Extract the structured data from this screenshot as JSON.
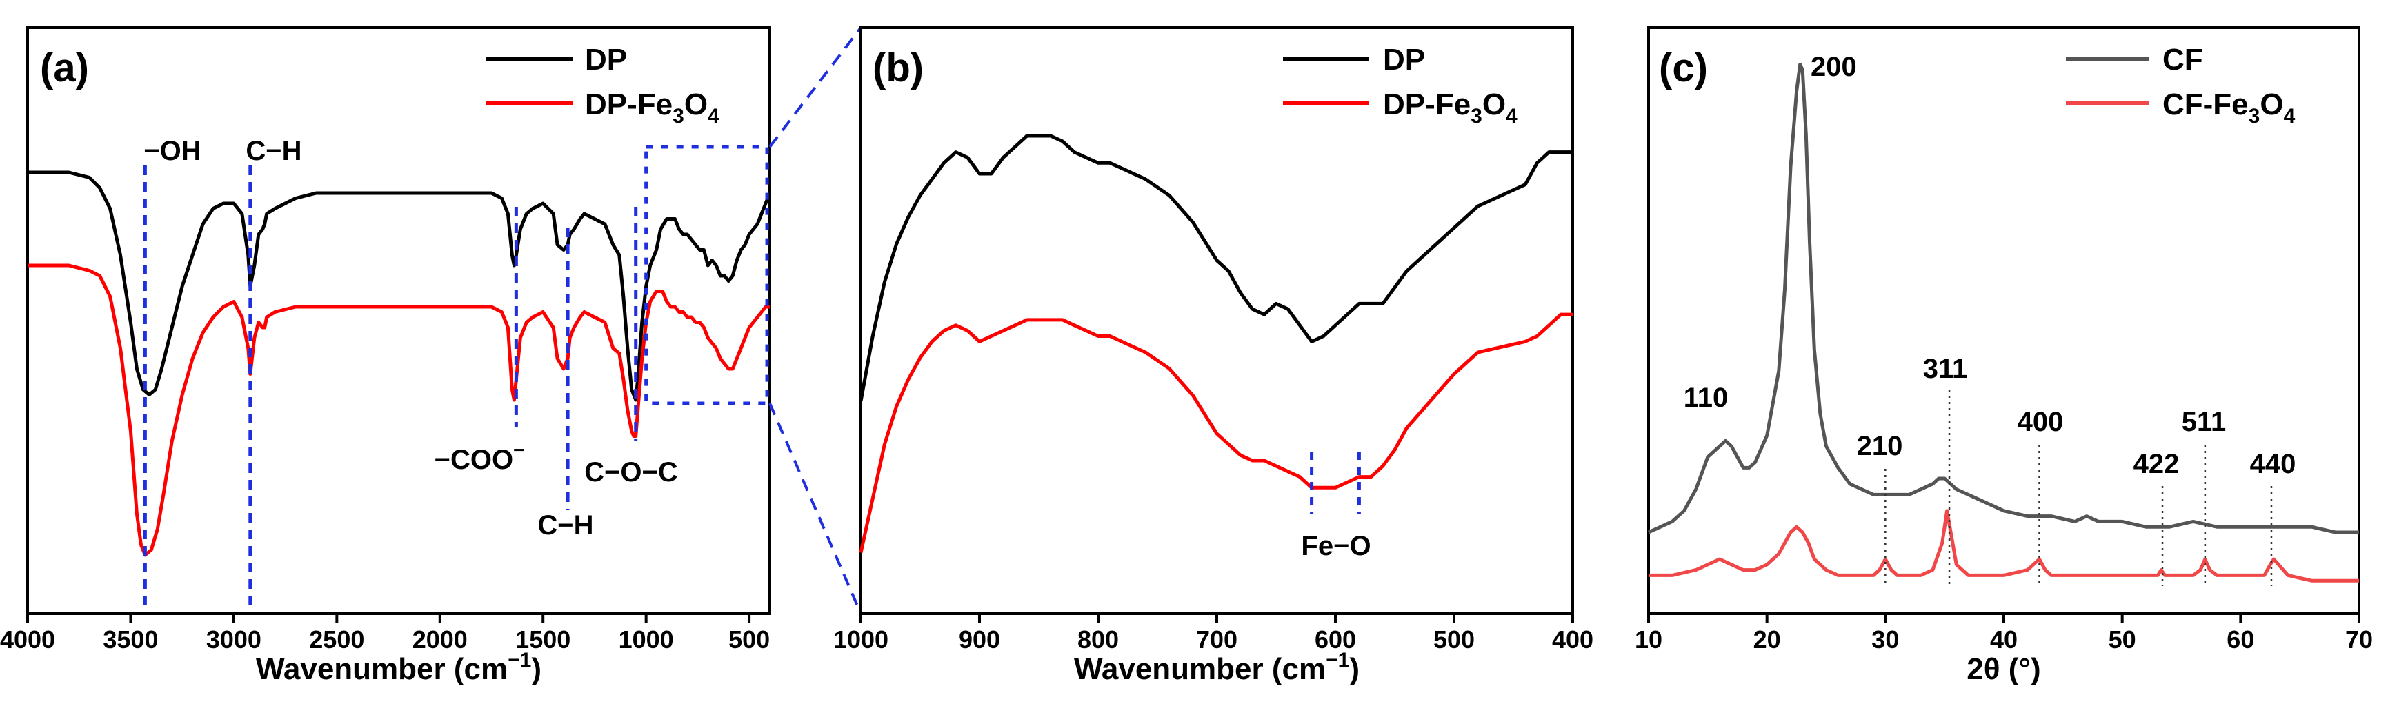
{
  "colors": {
    "black": "#000000",
    "red": "#ff0000",
    "gray": "#555555",
    "lightred": "#f04848",
    "blue": "#1f2fe0"
  },
  "chart_data": [
    {
      "type": "line",
      "panel": "(a)",
      "xlabel": "Wavenumber (cm",
      "xlabel_sup": "−1",
      "xlabel_end": ")",
      "xlim": [
        4000,
        400
      ],
      "xticks": [
        "4000",
        "3500",
        "3000",
        "2500",
        "2000",
        "1500",
        "1000",
        "500"
      ],
      "ylim": [
        0,
        100
      ],
      "legend": [
        {
          "name": "DP",
          "color": "#000000"
        },
        {
          "name": "DP-Fe",
          "sub1": "3",
          "mid": "O",
          "sub2": "4",
          "color": "#ff0000"
        }
      ],
      "series": [
        {
          "name": "DP",
          "color": "#000000",
          "x": [
            4000,
            3800,
            3700,
            3650,
            3600,
            3550,
            3500,
            3470,
            3440,
            3410,
            3380,
            3350,
            3300,
            3250,
            3200,
            3150,
            3100,
            3050,
            3000,
            2960,
            2930,
            2920,
            2900,
            2880,
            2860,
            2850,
            2840,
            2800,
            2750,
            2700,
            2600,
            2400,
            2200,
            2000,
            1900,
            1800,
            1750,
            1700,
            1670,
            1650,
            1640,
            1630,
            1610,
            1580,
            1550,
            1500,
            1450,
            1430,
            1400,
            1380,
            1370,
            1350,
            1320,
            1300,
            1250,
            1200,
            1160,
            1130,
            1110,
            1090,
            1070,
            1060,
            1050,
            1040,
            1020,
            1000,
            980,
            950,
            930,
            900,
            880,
            860,
            840,
            820,
            800,
            780,
            760,
            740,
            720,
            700,
            680,
            660,
            640,
            620,
            600,
            580,
            560,
            540,
            520,
            500,
            480,
            460,
            440,
            420,
            400
          ],
          "y": [
            84,
            84,
            83,
            81,
            77,
            68,
            55,
            46,
            42,
            41,
            42,
            46,
            54,
            62,
            68,
            74,
            77,
            78,
            78,
            76,
            68,
            62,
            66,
            72,
            73,
            74,
            76,
            77,
            78,
            79,
            80,
            80,
            80,
            80,
            80,
            80,
            80,
            79,
            76,
            68,
            66,
            68,
            73,
            76,
            77,
            78,
            76,
            70,
            69,
            70,
            72,
            73,
            75,
            76,
            75,
            74,
            70,
            68,
            60,
            50,
            42,
            41,
            40,
            44,
            55,
            62,
            66,
            69,
            73,
            75,
            75,
            75,
            73,
            72,
            72,
            71,
            70,
            69,
            69,
            66,
            67,
            66,
            64,
            64,
            63,
            64,
            67,
            69,
            70,
            72,
            73,
            74,
            76,
            78,
            80
          ]
        },
        {
          "name": "DP-Fe3O4",
          "color": "#ff0000",
          "x": [
            4000,
            3800,
            3700,
            3650,
            3600,
            3550,
            3500,
            3470,
            3450,
            3430,
            3400,
            3370,
            3340,
            3300,
            3250,
            3200,
            3150,
            3100,
            3050,
            3000,
            2960,
            2930,
            2920,
            2900,
            2880,
            2860,
            2850,
            2840,
            2800,
            2700,
            2600,
            2400,
            2200,
            2000,
            1900,
            1800,
            1750,
            1700,
            1670,
            1650,
            1640,
            1630,
            1610,
            1580,
            1550,
            1500,
            1450,
            1430,
            1400,
            1380,
            1370,
            1350,
            1320,
            1300,
            1250,
            1200,
            1160,
            1130,
            1110,
            1090,
            1070,
            1060,
            1050,
            1040,
            1020,
            1000,
            980,
            950,
            920,
            900,
            880,
            860,
            840,
            820,
            800,
            780,
            760,
            740,
            720,
            700,
            680,
            660,
            640,
            620,
            600,
            580,
            560,
            540,
            520,
            500,
            480,
            460,
            440,
            420,
            400
          ],
          "y": [
            66,
            66,
            65,
            64,
            60,
            50,
            34,
            18,
            12,
            10,
            11,
            15,
            22,
            32,
            41,
            48,
            53,
            56,
            58,
            59,
            56,
            50,
            45,
            52,
            55,
            54,
            54,
            56,
            57,
            58,
            58,
            58,
            58,
            58,
            58,
            58,
            58,
            57,
            54,
            42,
            40,
            44,
            52,
            55,
            56,
            57,
            54,
            48,
            46,
            48,
            52,
            54,
            56,
            57,
            56,
            55,
            50,
            49,
            44,
            38,
            34,
            33,
            33,
            38,
            48,
            55,
            59,
            61,
            61,
            59,
            58,
            58,
            57,
            57,
            56,
            56,
            55,
            55,
            54,
            52,
            51,
            50,
            48,
            47,
            46,
            46,
            48,
            50,
            52,
            54,
            55,
            56,
            57,
            58,
            58
          ]
        }
      ],
      "annotations": [
        {
          "text": "−OH",
          "x": 3430
        },
        {
          "text": "C−H",
          "x": 2920
        },
        {
          "text": "−COO",
          "sup": "−",
          "x": 1630
        },
        {
          "text": "C−H",
          "x": 1380
        },
        {
          "text": "C−O−C",
          "x": 1050
        }
      ],
      "zoom_box": {
        "x": [
          1000,
          400
        ]
      }
    },
    {
      "type": "line",
      "panel": "(b)",
      "xlabel": "Wavenumber (cm",
      "xlabel_sup": "−1",
      "xlabel_end": ")",
      "xlim": [
        1000,
        400
      ],
      "xticks": [
        "1000",
        "900",
        "800",
        "700",
        "600",
        "500",
        "400"
      ],
      "ylim": [
        0,
        100
      ],
      "legend": [
        {
          "name": "DP",
          "color": "#000000"
        },
        {
          "name": "DP-Fe",
          "sub1": "3",
          "mid": "O",
          "sub2": "4",
          "color": "#ff0000"
        }
      ],
      "series": [
        {
          "name": "DP",
          "color": "#000000",
          "x": [
            1000,
            990,
            980,
            970,
            960,
            950,
            940,
            930,
            920,
            910,
            900,
            890,
            880,
            870,
            860,
            850,
            840,
            830,
            820,
            810,
            800,
            790,
            780,
            760,
            740,
            720,
            700,
            690,
            680,
            670,
            660,
            650,
            640,
            630,
            620,
            610,
            600,
            590,
            580,
            570,
            560,
            550,
            540,
            520,
            500,
            480,
            460,
            440,
            430,
            420,
            410,
            400
          ],
          "y": [
            38,
            50,
            60,
            67,
            72,
            76,
            79,
            82,
            84,
            83,
            80,
            80,
            83,
            85,
            87,
            87,
            87,
            86,
            84,
            83,
            82,
            82,
            81,
            79,
            76,
            71,
            64,
            62,
            58,
            55,
            54,
            56,
            55,
            52,
            49,
            50,
            52,
            54,
            56,
            56,
            56,
            59,
            62,
            66,
            70,
            74,
            76,
            78,
            82,
            84,
            84,
            84
          ]
        },
        {
          "name": "DP-Fe3O4",
          "color": "#ff0000",
          "x": [
            1000,
            990,
            980,
            970,
            960,
            950,
            940,
            930,
            920,
            910,
            900,
            890,
            880,
            870,
            860,
            850,
            840,
            830,
            820,
            810,
            800,
            790,
            780,
            760,
            740,
            720,
            700,
            690,
            680,
            670,
            660,
            650,
            640,
            630,
            620,
            610,
            600,
            590,
            580,
            570,
            560,
            550,
            540,
            520,
            500,
            480,
            460,
            440,
            430,
            420,
            410,
            400
          ],
          "y": [
            10,
            20,
            30,
            37,
            42,
            46,
            49,
            51,
            52,
            51,
            49,
            50,
            51,
            52,
            53,
            53,
            53,
            53,
            52,
            51,
            50,
            50,
            49,
            47,
            44,
            39,
            32,
            30,
            28,
            27,
            27,
            26,
            25,
            24,
            22,
            22,
            22,
            23,
            24,
            24,
            26,
            29,
            33,
            38,
            43,
            47,
            48,
            49,
            50,
            52,
            54,
            54
          ]
        }
      ],
      "annotations": [
        {
          "text": "Fe−O",
          "x1": 620,
          "x2": 580
        }
      ]
    },
    {
      "type": "line",
      "panel": "(c)",
      "xlabel": "2θ (°)",
      "xlim": [
        10,
        70
      ],
      "xticks": [
        "10",
        "20",
        "30",
        "40",
        "50",
        "60",
        "70"
      ],
      "ylim": [
        0,
        100
      ],
      "legend": [
        {
          "name": "CF",
          "color": "#555555"
        },
        {
          "name": "CF-Fe",
          "sub1": "3",
          "mid": "O",
          "sub2": "4",
          "color": "#f04848"
        }
      ],
      "series": [
        {
          "name": "CF",
          "color": "#555555",
          "x": [
            10,
            11,
            12,
            13,
            14,
            15,
            16,
            16.5,
            17,
            17.5,
            18,
            18.5,
            19,
            20,
            21,
            21.5,
            22,
            22.5,
            22.8,
            23,
            23.3,
            23.6,
            24,
            24.5,
            25,
            26,
            27,
            28,
            29,
            30,
            31,
            32,
            33,
            34,
            34.5,
            35,
            35.5,
            36,
            37,
            38,
            40,
            42,
            44,
            46,
            47,
            48,
            50,
            52,
            54,
            56,
            58,
            60,
            62,
            64,
            66,
            68,
            70
          ],
          "y": [
            10,
            11,
            12,
            14,
            18,
            24,
            26,
            27,
            26,
            24,
            22,
            22,
            23,
            28,
            40,
            55,
            78,
            92,
            97,
            96,
            84,
            64,
            44,
            32,
            26,
            22,
            19,
            18,
            17,
            17,
            17,
            17,
            18,
            19,
            20,
            20,
            19,
            18,
            17,
            16,
            14,
            13,
            13,
            12,
            13,
            12,
            12,
            11,
            11,
            12,
            11,
            11,
            11,
            11,
            11,
            10,
            10
          ]
        },
        {
          "name": "CF-Fe3O4",
          "color": "#f04848",
          "x": [
            10,
            12,
            14,
            15,
            16,
            17,
            18,
            19,
            20,
            21,
            21.5,
            22,
            22.5,
            23,
            23.5,
            24,
            25,
            26,
            27,
            28,
            29,
            29.5,
            30,
            30.5,
            31,
            32,
            33,
            34,
            34.8,
            35.2,
            35.6,
            36,
            37,
            38,
            40,
            42,
            42.5,
            43,
            43.5,
            44,
            46,
            48,
            50,
            52,
            53,
            53.3,
            53.6,
            54,
            56,
            56.6,
            57,
            57.4,
            58,
            60,
            62,
            62.5,
            62.8,
            63.2,
            64,
            66,
            68,
            70
          ],
          "y": [
            2,
            2,
            3,
            4,
            5,
            4,
            3,
            3,
            4,
            6,
            8,
            10,
            11,
            10,
            8,
            5,
            3,
            2,
            2,
            2,
            2,
            3,
            5,
            3,
            2,
            2,
            2,
            3,
            8,
            14,
            9,
            4,
            2,
            2,
            2,
            3,
            4,
            5,
            3,
            2,
            2,
            2,
            2,
            2,
            2,
            3,
            2,
            2,
            2,
            3,
            5,
            3,
            2,
            2,
            2,
            4,
            5,
            4,
            2,
            1,
            1,
            1
          ]
        }
      ],
      "peaks": [
        {
          "label": "200",
          "x": 22.8
        },
        {
          "label": "110",
          "x": 16.5
        },
        {
          "label": "210",
          "x": 30.0
        },
        {
          "label": "311",
          "x": 35.4
        },
        {
          "label": "400",
          "x": 43.0
        },
        {
          "label": "422",
          "x": 53.4
        },
        {
          "label": "511",
          "x": 57.0
        },
        {
          "label": "440",
          "x": 62.6
        }
      ]
    }
  ]
}
